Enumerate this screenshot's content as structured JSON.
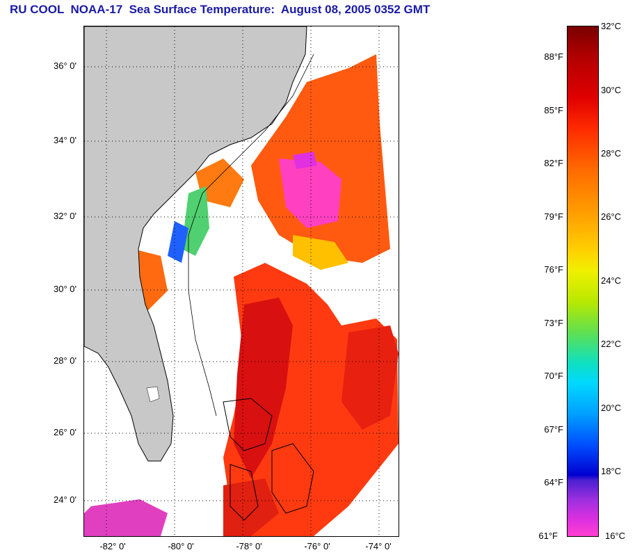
{
  "title": "RU COOL  NOAA-17  Sea Surface Temperature:  August 08, 2005 0352 GMT",
  "lat_labels": [
    "36° 0'",
    "34° 0'",
    "32° 0'",
    "30° 0'",
    "28° 0'",
    "26° 0'",
    "24° 0'"
  ],
  "lon_labels": [
    "-82° 0'",
    "-80° 0'",
    "-78° 0'",
    "-76° 0'",
    "-74° 0'"
  ],
  "colorbar": {
    "fahrenheit": [
      "88°F",
      "85°F",
      "82°F",
      "79°F",
      "76°F",
      "73°F",
      "70°F",
      "67°F",
      "64°F",
      "61°F"
    ],
    "celsius": [
      "32°C",
      "30°C",
      "28°C",
      "26°C",
      "24°C",
      "22°C",
      "20°C",
      "18°C",
      "16°C"
    ]
  },
  "colors": {
    "title": "#1a1aa6",
    "land": "#c8c8c8",
    "cloud": "#ffffff",
    "warm_water": "#ff4a00",
    "hot_water": "#dd1010",
    "cool_water": "#ff40c0"
  }
}
